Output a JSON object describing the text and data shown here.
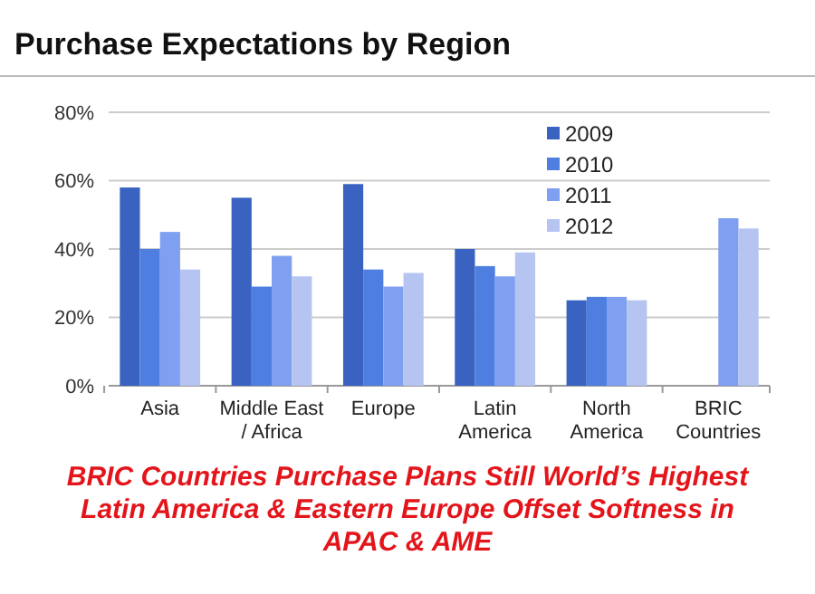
{
  "chart_data": {
    "type": "bar",
    "title": "Purchase Expectations by Region",
    "categories": [
      "Asia",
      "Middle East / Africa",
      "Europe",
      "Latin America",
      "North America",
      "BRIC Countries"
    ],
    "series": [
      {
        "name": "2009",
        "color": "#3a62c0",
        "values": [
          58,
          55,
          59,
          40,
          25,
          null
        ]
      },
      {
        "name": "2010",
        "color": "#4d7ee0",
        "values": [
          40,
          29,
          34,
          35,
          26,
          null
        ]
      },
      {
        "name": "2011",
        "color": "#7f9ff0",
        "values": [
          45,
          38,
          29,
          32,
          26,
          49
        ]
      },
      {
        "name": "2012",
        "color": "#b6c4f2",
        "values": [
          34,
          32,
          33,
          39,
          25,
          46
        ]
      }
    ],
    "ylim": [
      0,
      80
    ],
    "yticks": [
      {
        "value": 0,
        "label": "0%"
      },
      {
        "value": 20,
        "label": "20%"
      },
      {
        "value": 40,
        "label": "40%"
      },
      {
        "value": 60,
        "label": "60%"
      },
      {
        "value": 80,
        "label": "80%"
      }
    ],
    "grid": "y",
    "legend": "top right",
    "annotations": [
      "BRIC Countries Purchase Plans Still World’s Highest",
      "Latin America & Eastern Europe Offset Softness in",
      "APAC & AME"
    ]
  }
}
